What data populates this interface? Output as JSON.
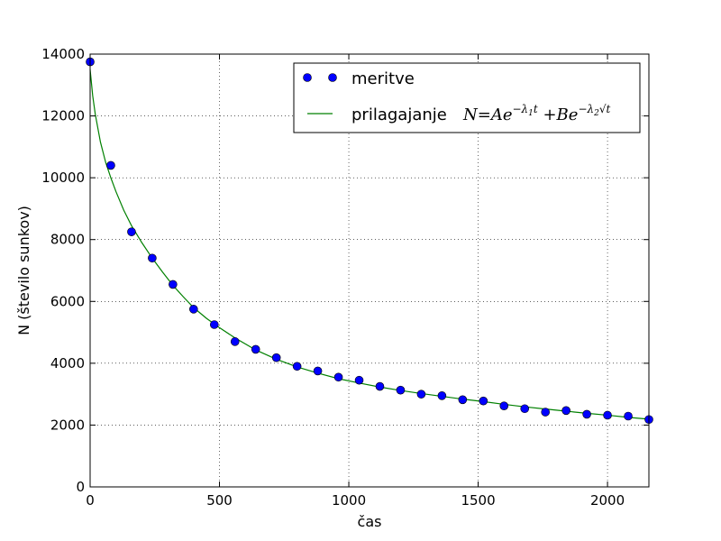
{
  "chart_data": {
    "type": "scatter",
    "xlabel": "čas",
    "ylabel": "N (število sunkov)",
    "xlim": [
      0,
      2160
    ],
    "ylim": [
      0,
      14000
    ],
    "x_ticks": [
      0,
      500,
      1000,
      1500,
      2000
    ],
    "y_ticks": [
      0,
      2000,
      4000,
      6000,
      8000,
      10000,
      12000,
      14000
    ],
    "grid": true,
    "legend_placement": "top-right",
    "series": [
      {
        "name": "meritve",
        "style": "markers",
        "color": "#0000ff",
        "x": [
          0,
          80,
          160,
          240,
          320,
          400,
          480,
          560,
          640,
          720,
          800,
          880,
          960,
          1040,
          1120,
          1200,
          1280,
          1360,
          1440,
          1520,
          1600,
          1680,
          1760,
          1840,
          1920,
          2000,
          2080,
          2160
        ],
        "y": [
          13750,
          10400,
          8250,
          7400,
          6550,
          5750,
          5250,
          4700,
          4450,
          4180,
          3900,
          3750,
          3550,
          3450,
          3250,
          3130,
          3000,
          2950,
          2820,
          2780,
          2620,
          2530,
          2420,
          2470,
          2350,
          2320,
          2290,
          2180
        ]
      },
      {
        "name": "prilagajanje",
        "legend_math": "N=Ae^{-λ₁t}+Be^{-λ₂√t}",
        "style": "line",
        "color": "#008000",
        "x": [
          0,
          10,
          20,
          40,
          60,
          80,
          100,
          130,
          160,
          200,
          240,
          280,
          320,
          360,
          400,
          450,
          500,
          560,
          640,
          720,
          800,
          880,
          960,
          1040,
          1120,
          1200,
          1280,
          1360,
          1440,
          1520,
          1600,
          1680,
          1760,
          1840,
          1920,
          2000,
          2080,
          2160
        ],
        "y": [
          13500,
          12650,
          12050,
          11150,
          10500,
          10000,
          9550,
          8950,
          8450,
          7900,
          7400,
          6950,
          6520,
          6150,
          5800,
          5450,
          5150,
          4820,
          4430,
          4130,
          3880,
          3680,
          3500,
          3360,
          3230,
          3120,
          3020,
          2930,
          2840,
          2760,
          2670,
          2590,
          2520,
          2450,
          2380,
          2320,
          2250,
          2190
        ]
      }
    ]
  }
}
